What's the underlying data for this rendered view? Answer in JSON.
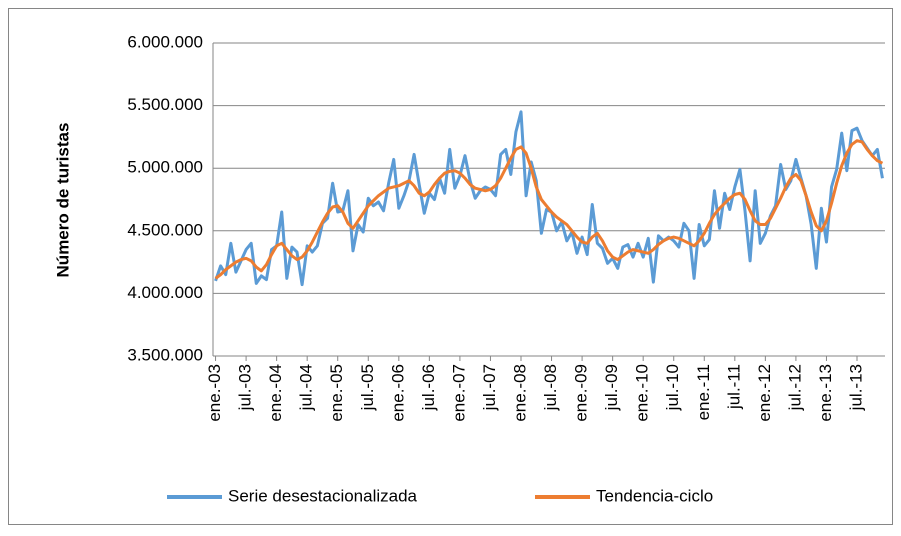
{
  "chart_data": {
    "type": "line",
    "y_label": "Número de turistas",
    "categories": [
      "ene.-03",
      null,
      null,
      null,
      null,
      null,
      "jul.-03",
      null,
      null,
      null,
      null,
      null,
      "ene.-04",
      null,
      null,
      null,
      null,
      null,
      "jul.-04",
      null,
      null,
      null,
      null,
      null,
      "ene.-05",
      null,
      null,
      null,
      null,
      null,
      "jul.-05",
      null,
      null,
      null,
      null,
      null,
      "ene.-06",
      null,
      null,
      null,
      null,
      null,
      "jul.-06",
      null,
      null,
      null,
      null,
      null,
      "ene.-07",
      null,
      null,
      null,
      null,
      null,
      "jul.-07",
      null,
      null,
      null,
      null,
      null,
      "ene.-08",
      null,
      null,
      null,
      null,
      null,
      "jul.-08",
      null,
      null,
      null,
      null,
      null,
      "ene.-09",
      null,
      null,
      null,
      null,
      null,
      "jul.-09",
      null,
      null,
      null,
      null,
      null,
      "ene.-10",
      null,
      null,
      null,
      null,
      null,
      "jul.-10",
      null,
      null,
      null,
      null,
      null,
      "ene.-11",
      null,
      null,
      null,
      null,
      null,
      "jul.-11",
      null,
      null,
      null,
      null,
      null,
      "ene.-12",
      null,
      null,
      null,
      null,
      null,
      "jul.-12",
      null,
      null,
      null,
      null,
      null,
      "ene.-13",
      null,
      null,
      null,
      null,
      null,
      "jul.-13",
      null,
      null,
      null,
      null,
      null
    ],
    "series": [
      {
        "name": "Serie desestacionalizada",
        "color": "#5b9bd5",
        "values": [
          4100000,
          4220000,
          4150000,
          4400000,
          4170000,
          4260000,
          4350000,
          4400000,
          4080000,
          4140000,
          4110000,
          4350000,
          4380000,
          4650000,
          4120000,
          4370000,
          4330000,
          4070000,
          4380000,
          4330000,
          4380000,
          4560000,
          4600000,
          4880000,
          4650000,
          4660000,
          4820000,
          4340000,
          4550000,
          4490000,
          4760000,
          4700000,
          4730000,
          4660000,
          4880000,
          5070000,
          4680000,
          4780000,
          4900000,
          5110000,
          4870000,
          4640000,
          4800000,
          4750000,
          4920000,
          4800000,
          5150000,
          4840000,
          4940000,
          5100000,
          4900000,
          4760000,
          4820000,
          4850000,
          4830000,
          4780000,
          5110000,
          5150000,
          4950000,
          5290000,
          5450000,
          4780000,
          5050000,
          4900000,
          4480000,
          4670000,
          4650000,
          4500000,
          4570000,
          4420000,
          4490000,
          4320000,
          4450000,
          4310000,
          4710000,
          4400000,
          4360000,
          4240000,
          4280000,
          4200000,
          4370000,
          4390000,
          4290000,
          4400000,
          4290000,
          4440000,
          4090000,
          4460000,
          4420000,
          4450000,
          4420000,
          4370000,
          4560000,
          4500000,
          4120000,
          4550000,
          4380000,
          4430000,
          4820000,
          4520000,
          4800000,
          4670000,
          4850000,
          4990000,
          4660000,
          4260000,
          4820000,
          4400000,
          4480000,
          4620000,
          4700000,
          5030000,
          4830000,
          4900000,
          5070000,
          4920000,
          4780000,
          4550000,
          4200000,
          4680000,
          4410000,
          4850000,
          4990000,
          5280000,
          4980000,
          5300000,
          5320000,
          5220000,
          5160000,
          5100000,
          5150000,
          4920000
        ]
      },
      {
        "name": "Tendencia-ciclo",
        "color": "#ed7d31",
        "values": [
          4120000,
          4150000,
          4190000,
          4220000,
          4250000,
          4270000,
          4280000,
          4260000,
          4210000,
          4180000,
          4230000,
          4310000,
          4380000,
          4400000,
          4350000,
          4300000,
          4270000,
          4290000,
          4340000,
          4410000,
          4490000,
          4570000,
          4640000,
          4690000,
          4700000,
          4650000,
          4560000,
          4520000,
          4580000,
          4640000,
          4700000,
          4740000,
          4780000,
          4810000,
          4840000,
          4850000,
          4860000,
          4880000,
          4900000,
          4860000,
          4800000,
          4780000,
          4810000,
          4870000,
          4920000,
          4960000,
          4975000,
          4980000,
          4960000,
          4920000,
          4870000,
          4840000,
          4830000,
          4820000,
          4830000,
          4860000,
          4920000,
          5000000,
          5080000,
          5150000,
          5170000,
          5120000,
          5000000,
          4850000,
          4750000,
          4700000,
          4650000,
          4610000,
          4580000,
          4550000,
          4500000,
          4450000,
          4410000,
          4400000,
          4450000,
          4480000,
          4420000,
          4340000,
          4290000,
          4270000,
          4300000,
          4330000,
          4350000,
          4340000,
          4330000,
          4320000,
          4350000,
          4390000,
          4420000,
          4440000,
          4450000,
          4440000,
          4420000,
          4400000,
          4380000,
          4420000,
          4480000,
          4560000,
          4630000,
          4680000,
          4720000,
          4760000,
          4790000,
          4800000,
          4750000,
          4660000,
          4580000,
          4550000,
          4550000,
          4600000,
          4680000,
          4760000,
          4850000,
          4920000,
          4950000,
          4900000,
          4780000,
          4650000,
          4540000,
          4500000,
          4580000,
          4720000,
          4880000,
          5020000,
          5120000,
          5190000,
          5220000,
          5210000,
          5150000,
          5100000,
          5060000,
          5040000
        ]
      }
    ],
    "ylim": [
      3500000,
      6000000
    ],
    "yticks": [
      {
        "value": 3500000,
        "label": "3.500.000"
      },
      {
        "value": 4000000,
        "label": "4.000.000"
      },
      {
        "value": 4500000,
        "label": "4.500.000"
      },
      {
        "value": 5000000,
        "label": "5.000.000"
      },
      {
        "value": 5500000,
        "label": "5.500.000"
      },
      {
        "value": 6000000,
        "label": "6.000.000"
      }
    ],
    "grid": true,
    "legend": "bottom"
  }
}
